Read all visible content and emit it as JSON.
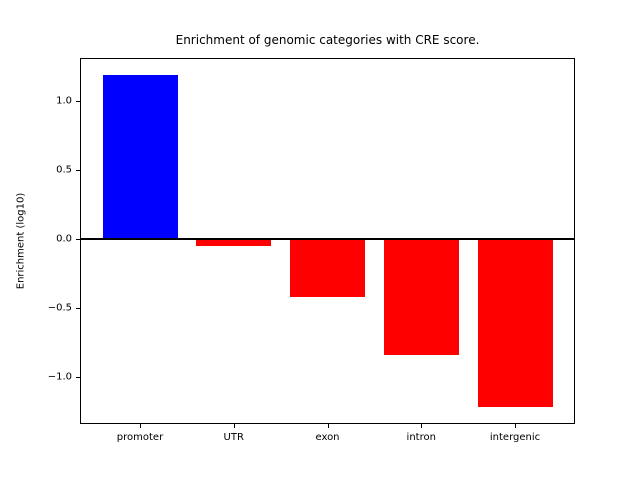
{
  "figure": {
    "background": "#ffffff"
  },
  "chart_data": {
    "type": "bar",
    "title": "Enrichment of genomic categories with CRE score.",
    "ylabel": "Enrichment (log10)",
    "xlabel": "",
    "categories": [
      "promoter",
      "UTR",
      "exon",
      "intron",
      "intergenic"
    ],
    "values": [
      1.19,
      -0.05,
      -0.42,
      -0.84,
      -1.22
    ],
    "bar_colors": [
      "#0000ff",
      "#ff0000",
      "#ff0000",
      "#ff0000",
      "#ff0000"
    ],
    "bar_width": 0.8,
    "yticks": [
      {
        "value": 1.0,
        "label": "1.0"
      },
      {
        "value": 0.5,
        "label": "0.5"
      },
      {
        "value": 0.0,
        "label": "0.0"
      },
      {
        "value": -0.5,
        "label": "−0.5"
      },
      {
        "value": -1.0,
        "label": "−1.0"
      }
    ],
    "ylim": [
      -1.34,
      1.31
    ],
    "xlim": [
      -0.64,
      4.64
    ],
    "zero_line": true,
    "grid": false,
    "axis_color": "#000000",
    "legend_position": "none"
  }
}
